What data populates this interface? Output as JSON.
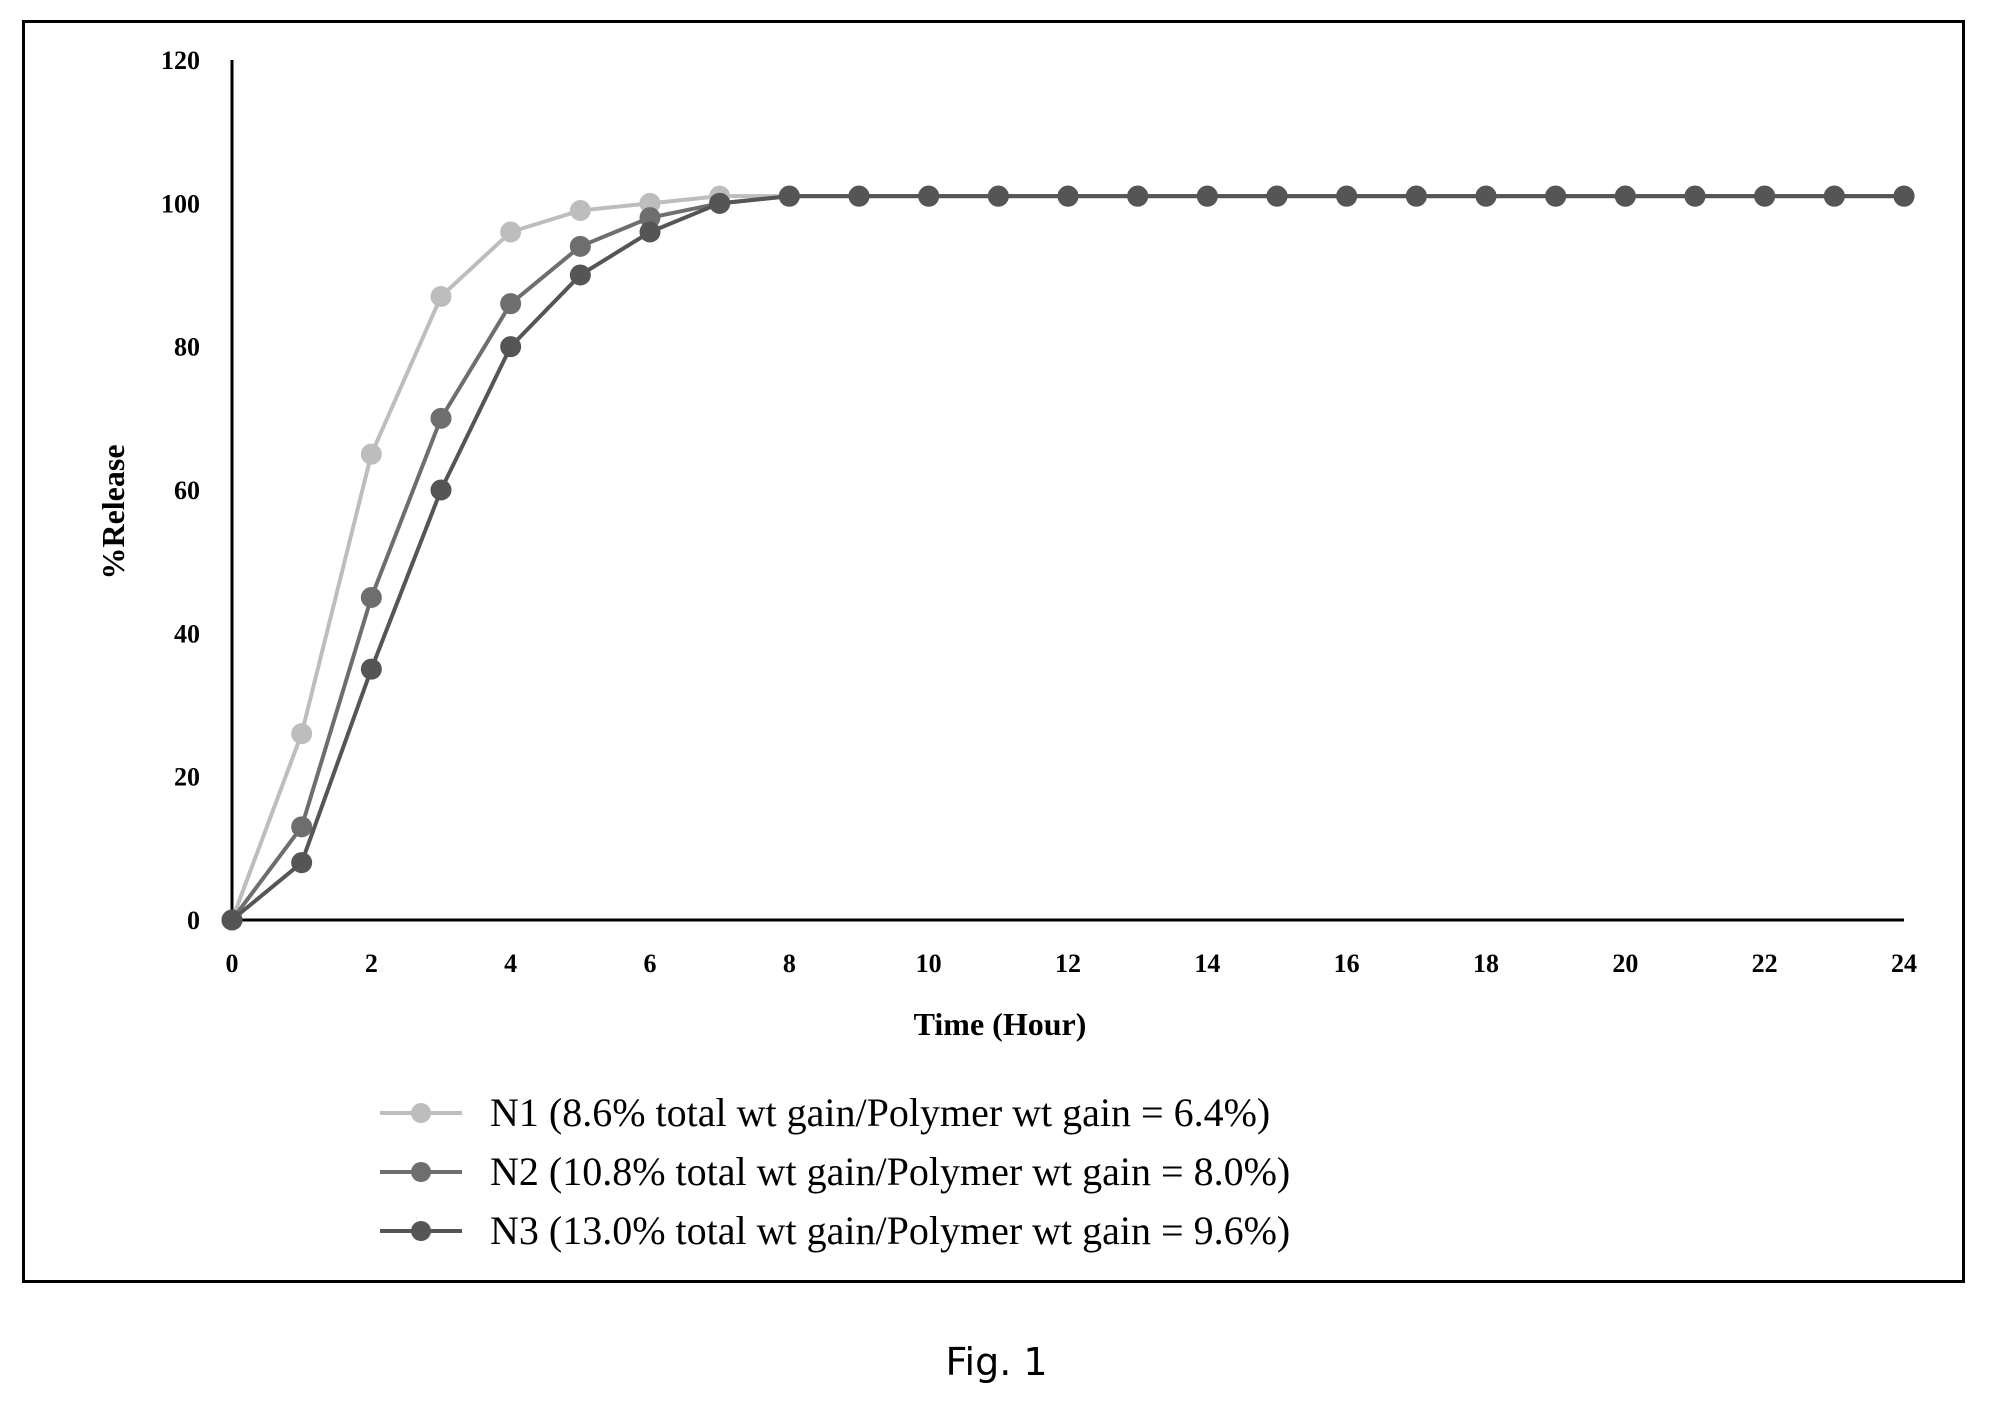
{
  "caption": "Fig. 1",
  "chart_data": {
    "type": "line",
    "ylabel": "%Release",
    "xlabel": "Time (Hour)",
    "xlim": [
      0,
      24
    ],
    "ylim": [
      0,
      120
    ],
    "xticks": [
      0,
      2,
      4,
      6,
      8,
      10,
      12,
      14,
      16,
      18,
      20,
      22,
      24
    ],
    "yticks": [
      0,
      20,
      40,
      60,
      80,
      100,
      120
    ],
    "grid": false,
    "legend_position": "bottom",
    "x": [
      0,
      1,
      2,
      3,
      4,
      5,
      6,
      7,
      8,
      9,
      10,
      11,
      12,
      13,
      14,
      15,
      16,
      17,
      18,
      19,
      20,
      21,
      22,
      23,
      24
    ],
    "series": [
      {
        "name": "N1 (8.6% total wt gain/Polymer wt gain = 6.4%)",
        "color": "#bdbdbd",
        "values": [
          0,
          26,
          65,
          87,
          96,
          99,
          100,
          101,
          101,
          101,
          101,
          101,
          101,
          101,
          101,
          101,
          101,
          101,
          101,
          101,
          101,
          101,
          101,
          101,
          101
        ]
      },
      {
        "name": "N2 (10.8% total wt gain/Polymer wt gain = 8.0%)",
        "color": "#6e6e6e",
        "values": [
          0,
          13,
          45,
          70,
          86,
          94,
          98,
          100,
          101,
          101,
          101,
          101,
          101,
          101,
          101,
          101,
          101,
          101,
          101,
          101,
          101,
          101,
          101,
          101,
          101
        ]
      },
      {
        "name": "N3 (13.0% total wt gain/Polymer wt gain = 9.6%)",
        "color": "#555555",
        "values": [
          0,
          8,
          35,
          60,
          80,
          90,
          96,
          100,
          101,
          101,
          101,
          101,
          101,
          101,
          101,
          101,
          101,
          101,
          101,
          101,
          101,
          101,
          101,
          101,
          101
        ]
      }
    ]
  }
}
